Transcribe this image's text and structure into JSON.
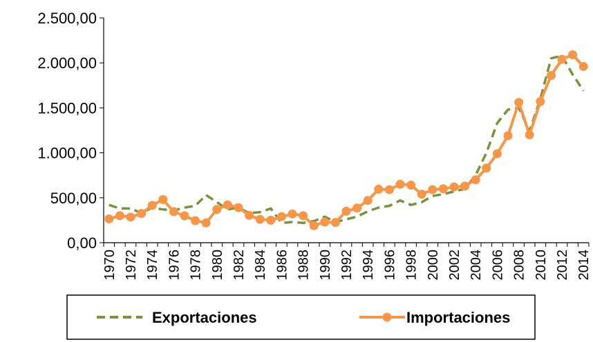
{
  "chart_data": {
    "type": "line",
    "categories": [
      "1970",
      null,
      "1972",
      null,
      "1974",
      null,
      "1976",
      null,
      "1978",
      null,
      "1980",
      null,
      "1982",
      null,
      "1984",
      null,
      "1986",
      null,
      "1988",
      null,
      "1990",
      null,
      "1992",
      null,
      "1994",
      null,
      "1996",
      null,
      "1998",
      null,
      "2000",
      null,
      "2002",
      null,
      "2004",
      null,
      "2006",
      null,
      "2008",
      null,
      "2010",
      null,
      "2012",
      null,
      "2014"
    ],
    "series": [
      {
        "name": "Exportaciones",
        "color": "#77933c",
        "line_style": "dashed",
        "marker": "none",
        "values": [
          420,
          380,
          380,
          330,
          390,
          370,
          360,
          390,
          410,
          530,
          450,
          370,
          390,
          330,
          340,
          380,
          220,
          230,
          220,
          240,
          290,
          230,
          260,
          290,
          350,
          390,
          410,
          470,
          420,
          450,
          520,
          540,
          570,
          600,
          750,
          1000,
          1330,
          1480,
          1500,
          1240,
          1600,
          2050,
          2080,
          1870,
          1690
        ]
      },
      {
        "name": "Importaciones",
        "color": "#f79646",
        "line_style": "solid",
        "marker": "circle",
        "values": [
          265,
          300,
          285,
          325,
          415,
          480,
          345,
          300,
          245,
          220,
          370,
          420,
          390,
          305,
          260,
          250,
          290,
          320,
          300,
          190,
          230,
          225,
          350,
          385,
          470,
          595,
          590,
          650,
          640,
          540,
          590,
          600,
          620,
          630,
          700,
          830,
          990,
          1190,
          1560,
          1200,
          1570,
          1860,
          2040,
          2090,
          1960
        ]
      }
    ],
    "ylim": [
      0,
      2500
    ],
    "yticks": [
      {
        "value": 0,
        "label": "0,00"
      },
      {
        "value": 500,
        "label": "500,00"
      },
      {
        "value": 1000,
        "label": "1.000,00"
      },
      {
        "value": 1500,
        "label": "1.500,00"
      },
      {
        "value": 2000,
        "label": "2.000,00"
      },
      {
        "value": 2500,
        "label": "2.500,00"
      }
    ],
    "grid": false,
    "legend": "bottom"
  }
}
